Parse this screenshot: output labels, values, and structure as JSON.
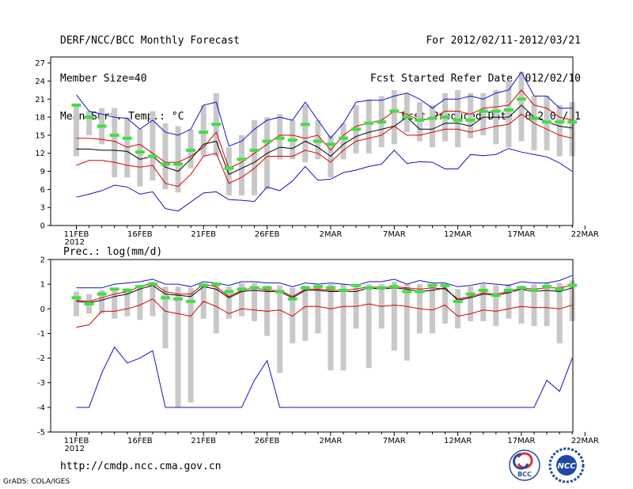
{
  "header": {
    "left": [
      "DERF/NCC/BCC Monthly Forecast",
      "Member Size=40",
      "Mean Surf. Temp.: °C"
    ],
    "right": [
      "For 2012/02/11-2012/03/21",
      "Fcst Started Refer Date 2012/02/10",
      "Fcst Produced Date 2012/02/11"
    ]
  },
  "footer": {
    "url": "http://cmdp.ncc.cma.gov.cn",
    "credit": "GrADS: COLA/IGES",
    "logos": [
      {
        "name": "bcc-logo",
        "text": "BCC"
      },
      {
        "name": "ncc-logo",
        "text": "NCC"
      }
    ]
  },
  "colors": {
    "max_min": "#1010cc",
    "spread": "#dd0000",
    "mean": "#000000",
    "median": "#44dd44",
    "range_bar": "#c8c8c8"
  },
  "chart_data": [
    {
      "type": "line",
      "title": "Mean Surf. Temp.: °C",
      "xlabel": "",
      "ylabel": "",
      "x_ticks": [
        "11FEB",
        "16FEB",
        "21FEB",
        "26FEB",
        "2MAR",
        "7MAR",
        "12MAR",
        "17MAR",
        "22MAR"
      ],
      "x_year_label": "2012",
      "y_ticks": [
        0,
        3,
        6,
        9,
        12,
        15,
        18,
        21,
        24,
        27
      ],
      "ylim": [
        0,
        28
      ],
      "xlim": [
        0,
        40
      ],
      "x": [
        0,
        1,
        2,
        3,
        4,
        5,
        6,
        7,
        8,
        9,
        10,
        11,
        12,
        13,
        14,
        15,
        16,
        17,
        18,
        19,
        20,
        21,
        22,
        23,
        24,
        25,
        26,
        27,
        28,
        29,
        30,
        31,
        32,
        33,
        34,
        35,
        36,
        37,
        38,
        39
      ],
      "series": [
        {
          "name": "max",
          "values": [
            21.7,
            19.0,
            18.5,
            18.0,
            17.8,
            16.0,
            17.5,
            15.5,
            15.0,
            16.0,
            20.0,
            20.5,
            13.2,
            14.0,
            16.0,
            17.5,
            18.0,
            17.5,
            20.5,
            17.5,
            14.5,
            17.0,
            20.5,
            20.8,
            20.8,
            21.5,
            22.0,
            21.0,
            19.5,
            21.0,
            21.0,
            21.5,
            21.0,
            22.0,
            22.5,
            25.5,
            21.5,
            21.5,
            19.5,
            19.5
          ]
        },
        {
          "name": "upper",
          "values": [
            14.5,
            14.5,
            14.3,
            14.0,
            13.0,
            13.5,
            12.0,
            10.5,
            10.5,
            11.5,
            13.0,
            15.5,
            9.5,
            10.5,
            12.0,
            13.5,
            15.0,
            15.0,
            14.5,
            15.0,
            12.5,
            15.0,
            16.5,
            17.0,
            17.5,
            19.0,
            18.5,
            17.5,
            17.8,
            19.0,
            19.0,
            18.5,
            19.5,
            19.7,
            20.0,
            22.5,
            20.0,
            19.5,
            18.0,
            17.5
          ]
        },
        {
          "name": "mean",
          "values": [
            12.7,
            12.7,
            12.5,
            12.5,
            12.3,
            11.0,
            11.5,
            9.7,
            9.0,
            11.0,
            13.5,
            14.0,
            8.5,
            9.5,
            10.5,
            12.0,
            13.0,
            12.8,
            14.0,
            13.0,
            11.5,
            13.5,
            14.8,
            15.5,
            16.0,
            16.5,
            18.0,
            16.0,
            16.0,
            17.0,
            17.0,
            16.5,
            18.0,
            18.0,
            18.0,
            20.0,
            18.0,
            17.2,
            16.5,
            16.2
          ]
        },
        {
          "name": "lower",
          "values": [
            10.0,
            10.8,
            10.8,
            10.5,
            10.0,
            9.7,
            10.0,
            7.0,
            6.5,
            8.5,
            11.5,
            12.0,
            7.0,
            8.0,
            9.5,
            11.5,
            11.5,
            11.5,
            12.5,
            12.0,
            10.5,
            12.5,
            14.0,
            14.5,
            15.0,
            16.5,
            15.0,
            15.0,
            15.5,
            16.0,
            16.0,
            15.5,
            16.0,
            16.5,
            16.8,
            18.5,
            17.0,
            16.0,
            15.0,
            14.5
          ]
        },
        {
          "name": "min",
          "values": [
            4.7,
            5.2,
            5.8,
            6.7,
            6.4,
            5.2,
            5.6,
            2.8,
            2.4,
            3.9,
            5.4,
            5.6,
            4.3,
            4.2,
            4.0,
            6.4,
            5.8,
            7.4,
            9.8,
            7.5,
            7.7,
            8.8,
            9.2,
            9.8,
            10.2,
            12.5,
            10.3,
            10.6,
            10.5,
            9.4,
            9.4,
            11.8,
            11.6,
            11.8,
            12.8,
            12.2,
            11.8,
            11.4,
            10.4,
            9.0
          ]
        },
        {
          "name": "median",
          "values": [
            20.0,
            18.0,
            16.5,
            15.0,
            14.5,
            12.2,
            11.5,
            10.2,
            10.2,
            12.5,
            15.5,
            16.8,
            9.5,
            11.0,
            12.5,
            14.0,
            14.5,
            14.2,
            16.8,
            14.0,
            13.5,
            14.5,
            16.0,
            17.0,
            17.2,
            19.0,
            18.0,
            17.5,
            17.8,
            18.0,
            17.5,
            17.5,
            19.0,
            19.0,
            19.2,
            21.0,
            17.8,
            17.2,
            17.2,
            17.2
          ]
        }
      ],
      "range_bars": [
        [
          11.5,
          20.0
        ],
        [
          15.0,
          19.0
        ],
        [
          13.5,
          19.5
        ],
        [
          8.0,
          19.5
        ],
        [
          8.0,
          18.0
        ],
        [
          6.5,
          16.0
        ],
        [
          7.5,
          19.0
        ],
        [
          6.0,
          17.0
        ],
        [
          5.5,
          16.5
        ],
        [
          9.5,
          16.0
        ],
        [
          11.5,
          20.0
        ],
        [
          11.5,
          22.0
        ],
        [
          5.0,
          13.0
        ],
        [
          5.0,
          15.0
        ],
        [
          5.0,
          17.5
        ],
        [
          6.0,
          18.0
        ],
        [
          11.0,
          18.5
        ],
        [
          11.0,
          17.5
        ],
        [
          10.5,
          20.0
        ],
        [
          11.0,
          17.5
        ],
        [
          8.0,
          15.0
        ],
        [
          11.0,
          17.0
        ],
        [
          12.0,
          20.0
        ],
        [
          12.0,
          21.0
        ],
        [
          13.0,
          21.5
        ],
        [
          13.5,
          22.5
        ],
        [
          15.5,
          22.0
        ],
        [
          14.0,
          20.5
        ],
        [
          13.0,
          20.0
        ],
        [
          14.0,
          22.0
        ],
        [
          13.0,
          22.5
        ],
        [
          14.5,
          22.0
        ],
        [
          15.0,
          22.0
        ],
        [
          13.5,
          22.5
        ],
        [
          13.0,
          24.0
        ],
        [
          14.0,
          25.5
        ],
        [
          12.5,
          21.5
        ],
        [
          12.5,
          21.5
        ],
        [
          11.5,
          20.0
        ],
        [
          11.5,
          20.5
        ]
      ]
    },
    {
      "type": "line",
      "title": "Prec.: log(mm/d)",
      "xlabel": "",
      "ylabel": "",
      "x_ticks": [
        "11FEB",
        "16FEB",
        "21FEB",
        "26FEB",
        "2MAR",
        "7MAR",
        "12MAR",
        "17MAR",
        "22MAR"
      ],
      "x_year_label": "2012",
      "y_ticks": [
        -5,
        -4,
        -3,
        -2,
        -1,
        0,
        1,
        2
      ],
      "ylim": [
        -5,
        2
      ],
      "xlim": [
        0,
        40
      ],
      "x": [
        0,
        1,
        2,
        3,
        4,
        5,
        6,
        7,
        8,
        9,
        10,
        11,
        12,
        13,
        14,
        15,
        16,
        17,
        18,
        19,
        20,
        21,
        22,
        23,
        24,
        25,
        26,
        27,
        28,
        29,
        30,
        31,
        32,
        33,
        34,
        35,
        36,
        37,
        38,
        39
      ],
      "series": [
        {
          "name": "max",
          "values": [
            0.85,
            0.85,
            0.85,
            1.0,
            1.05,
            1.1,
            1.2,
            1.0,
            1.0,
            0.9,
            1.1,
            1.05,
            0.95,
            1.1,
            1.1,
            1.05,
            1.05,
            0.9,
            1.05,
            1.0,
            1.05,
            1.0,
            0.95,
            1.1,
            1.1,
            1.2,
            1.0,
            1.15,
            1.05,
            1.05,
            0.9,
            0.95,
            1.05,
            1.0,
            0.95,
            1.1,
            1.05,
            1.05,
            1.15,
            1.35
          ]
        },
        {
          "name": "upper",
          "values": [
            0.35,
            0.3,
            0.45,
            0.6,
            0.7,
            0.9,
            1.05,
            0.7,
            0.6,
            0.6,
            1.0,
            0.9,
            0.5,
            0.75,
            0.85,
            0.75,
            0.75,
            0.5,
            0.8,
            0.8,
            0.75,
            0.75,
            0.8,
            0.9,
            0.85,
            0.9,
            0.85,
            0.8,
            0.85,
            0.8,
            0.4,
            0.5,
            0.65,
            0.6,
            0.7,
            0.85,
            0.8,
            0.85,
            0.85,
            0.95
          ]
        },
        {
          "name": "mean",
          "values": [
            0.3,
            0.25,
            0.35,
            0.5,
            0.6,
            0.8,
            0.95,
            0.6,
            0.55,
            0.5,
            0.9,
            0.8,
            0.45,
            0.7,
            0.75,
            0.7,
            0.7,
            0.45,
            0.75,
            0.75,
            0.7,
            0.7,
            0.7,
            0.85,
            0.8,
            0.85,
            0.8,
            0.7,
            0.75,
            0.85,
            0.35,
            0.45,
            0.6,
            0.55,
            0.65,
            0.8,
            0.7,
            0.75,
            0.7,
            0.85
          ]
        },
        {
          "name": "lower",
          "values": [
            -0.75,
            -0.65,
            -0.1,
            -0.1,
            0.0,
            0.15,
            0.4,
            -0.1,
            -0.2,
            -0.3,
            0.3,
            0.1,
            -0.2,
            0.0,
            -0.05,
            -0.1,
            -0.05,
            -0.3,
            0.1,
            0.1,
            0.0,
            0.1,
            0.1,
            0.2,
            0.1,
            0.15,
            0.1,
            0.0,
            -0.05,
            0.15,
            -0.3,
            -0.2,
            -0.05,
            -0.1,
            0.0,
            0.1,
            0.05,
            0.05,
            0.0,
            0.15
          ]
        },
        {
          "name": "min",
          "values": [
            -4.0,
            -4.0,
            -2.6,
            -1.55,
            -2.2,
            -2.0,
            -1.7,
            -4.0,
            -4.0,
            -4.0,
            -4.0,
            -4.0,
            -4.0,
            -4.0,
            -2.9,
            -2.1,
            -4.0,
            -4.0,
            -4.0,
            -4.0,
            -4.0,
            -4.0,
            -4.0,
            -4.0,
            -4.0,
            -4.0,
            -4.0,
            -4.0,
            -4.0,
            -4.0,
            -4.0,
            -4.0,
            -4.0,
            -4.0,
            -4.0,
            -4.0,
            -4.0,
            -2.9,
            -3.35,
            -2.0
          ]
        },
        {
          "name": "median",
          "values": [
            0.45,
            0.2,
            0.6,
            0.8,
            0.75,
            0.9,
            1.0,
            0.45,
            0.4,
            0.3,
            0.95,
            1.0,
            0.7,
            0.8,
            0.85,
            0.85,
            0.7,
            0.4,
            0.85,
            0.9,
            0.85,
            0.75,
            0.95,
            0.85,
            0.85,
            0.9,
            0.7,
            0.7,
            0.95,
            0.95,
            0.3,
            0.6,
            0.75,
            0.55,
            0.75,
            0.85,
            0.75,
            0.9,
            0.8,
            0.95
          ]
        }
      ],
      "range_bars": [
        [
          -0.3,
          0.7
        ],
        [
          -0.2,
          0.6
        ],
        [
          -0.2,
          0.75
        ],
        [
          -0.4,
          0.85
        ],
        [
          -0.3,
          0.85
        ],
        [
          -0.45,
          0.95
        ],
        [
          -0.3,
          1.1
        ],
        [
          -1.6,
          0.9
        ],
        [
          -4.0,
          0.9
        ],
        [
          -3.8,
          0.85
        ],
        [
          -0.4,
          1.05
        ],
        [
          -1.0,
          1.05
        ],
        [
          -0.4,
          0.9
        ],
        [
          -0.3,
          1.05
        ],
        [
          -0.5,
          1.05
        ],
        [
          -1.1,
          0.95
        ],
        [
          -2.6,
          0.95
        ],
        [
          -1.4,
          0.85
        ],
        [
          -1.3,
          0.95
        ],
        [
          -1.0,
          0.95
        ],
        [
          -2.5,
          1.0
        ],
        [
          -2.5,
          1.0
        ],
        [
          -0.8,
          1.0
        ],
        [
          -2.4,
          1.0
        ],
        [
          -0.8,
          1.0
        ],
        [
          -1.7,
          1.1
        ],
        [
          -2.1,
          1.0
        ],
        [
          -1.0,
          1.0
        ],
        [
          -1.0,
          1.0
        ],
        [
          -0.6,
          0.9
        ],
        [
          -0.8,
          0.8
        ],
        [
          -0.5,
          0.9
        ],
        [
          -0.5,
          1.0
        ],
        [
          -0.7,
          0.95
        ],
        [
          -0.4,
          1.0
        ],
        [
          -0.6,
          0.95
        ],
        [
          -0.7,
          1.0
        ],
        [
          -0.7,
          1.05
        ],
        [
          -1.4,
          1.05
        ],
        [
          -0.5,
          1.15
        ]
      ]
    }
  ]
}
